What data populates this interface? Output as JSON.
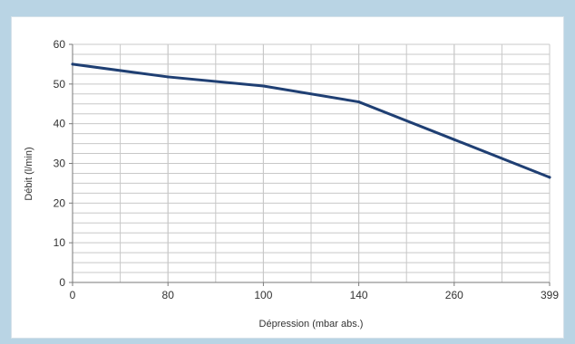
{
  "chart_data": {
    "type": "line",
    "categories": [
      "0",
      "80",
      "100",
      "140",
      "260",
      "399"
    ],
    "series": [
      {
        "values": [
          55,
          51.8,
          49.5,
          45.5,
          36,
          26.5
        ]
      }
    ],
    "title": "",
    "xlabel": "Dépression (mbar abs.)",
    "ylabel": "Débit (l/min)",
    "ylim": [
      0,
      60
    ],
    "yticks": [
      "0",
      "10",
      "20",
      "30",
      "40",
      "50",
      "60"
    ],
    "grid": true,
    "legend": "none",
    "colors": {
      "line": "#1f3f73",
      "grid": "#c8c8c8",
      "frame_bg": "#b9d4e4"
    }
  }
}
